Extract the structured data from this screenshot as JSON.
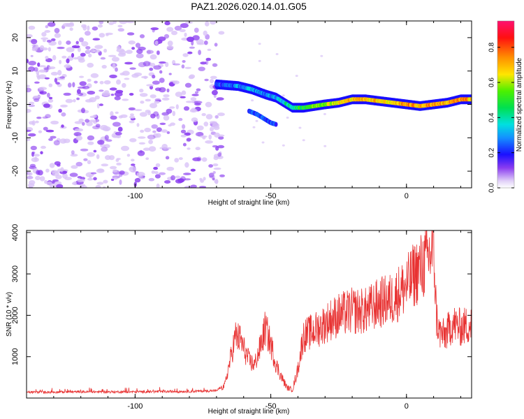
{
  "title": "PAZ1.2026.020.14.01.G05",
  "colors": {
    "snr_line": "#e83232",
    "speck": "#8a3cf0",
    "speck_light": "#d9c3f7"
  },
  "chart_data": [
    {
      "type": "heatmap",
      "name": "spectrogram",
      "xlabel": "Height of straight line (km)",
      "ylabel": "Frequency (Hz)",
      "xlim": [
        -140,
        24
      ],
      "ylim": [
        -25,
        25
      ],
      "xticks": [
        -100,
        -50,
        0
      ],
      "yticks": [
        -20,
        -10,
        0,
        10,
        20
      ],
      "noise_region_x": [
        -140,
        -68
      ],
      "ridge": {
        "x": [
          -70,
          -62,
          -57,
          -52,
          -48,
          -45,
          -42,
          -38,
          -34,
          -30,
          -25,
          -20,
          -15,
          -10,
          -5,
          0,
          5,
          10,
          15,
          20,
          24
        ],
        "y": [
          6,
          5.5,
          4.5,
          3,
          2,
          0.5,
          -1,
          -1,
          -0.5,
          0,
          0.5,
          1.5,
          1.5,
          1,
          0.5,
          0,
          -0.5,
          0,
          0.5,
          1.5,
          1.5
        ],
        "amplitude": [
          0.25,
          0.3,
          0.35,
          0.3,
          0.35,
          0.4,
          0.45,
          0.55,
          0.6,
          0.65,
          0.7,
          0.75,
          0.75,
          0.75,
          0.7,
          0.8,
          0.75,
          0.8,
          0.75,
          0.8,
          0.75
        ]
      },
      "branch": {
        "x": [
          -58,
          -55,
          -52,
          -50,
          -48
        ],
        "y": [
          -2,
          -3,
          -4.5,
          -5.5,
          -6
        ]
      }
    },
    {
      "type": "colorbar",
      "name": "amplitude-colorbar",
      "label": "Normalized spectral amplitude",
      "range": [
        0,
        0.95
      ],
      "ticks": [
        0.0,
        0.2,
        0.4,
        0.6,
        0.8
      ],
      "tick_labels": [
        "0.0",
        "0.2",
        "0.4",
        "0.6",
        "0.8"
      ]
    },
    {
      "type": "line",
      "name": "snr",
      "xlabel": "Height of straight line (km)",
      "ylabel": "SNR (10 * v/v)",
      "xlim": [
        -140,
        24
      ],
      "ylim": [
        0,
        4050
      ],
      "xticks": [
        -100,
        -50,
        0
      ],
      "yticks": [
        1000,
        2000,
        3000,
        4000
      ],
      "series": [
        {
          "name": "SNR",
          "x": [
            -140,
            -120,
            -100,
            -80,
            -70,
            -67,
            -65,
            -63,
            -61,
            -60,
            -58,
            -56,
            -54,
            -52,
            -50,
            -48,
            -46,
            -44,
            -42,
            -40,
            -38,
            -35,
            -32,
            -28,
            -25,
            -20,
            -15,
            -10,
            -5,
            -2,
            0,
            3,
            6,
            9,
            10,
            11,
            12,
            14,
            17,
            20,
            24
          ],
          "y": [
            120,
            130,
            130,
            140,
            160,
            300,
            900,
            1500,
            1400,
            1200,
            900,
            800,
            1200,
            1700,
            1300,
            800,
            500,
            250,
            200,
            700,
            1500,
            1600,
            1700,
            1900,
            2000,
            2100,
            2100,
            2300,
            2400,
            2600,
            2700,
            3000,
            3200,
            3500,
            3700,
            2000,
            1600,
            1500,
            1800,
            1700,
            1800
          ]
        }
      ]
    }
  ]
}
